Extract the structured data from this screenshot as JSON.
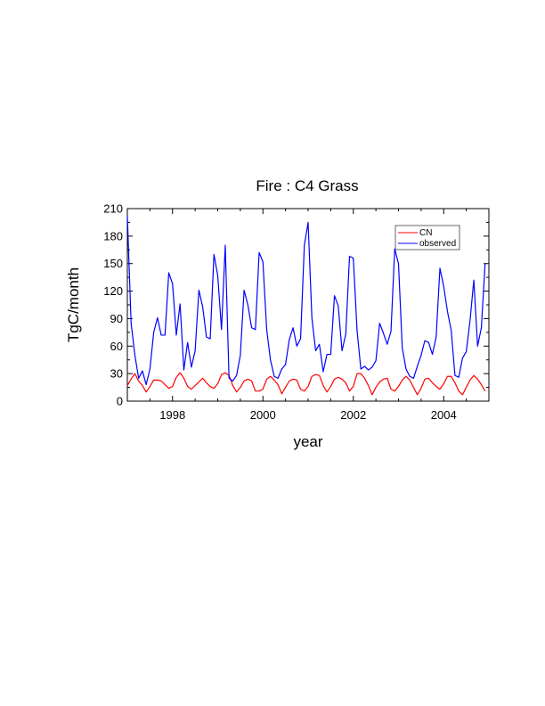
{
  "chart_data": {
    "type": "line",
    "title": "Fire : C4 Grass",
    "xlabel": "year",
    "ylabel": "TgC/month",
    "xlim": [
      1997.0,
      2005.0
    ],
    "ylim": [
      0,
      210
    ],
    "xticks": [
      1998,
      2000,
      2002,
      2004
    ],
    "xtick_labels": [
      "1998",
      "2000",
      "2002",
      "2004"
    ],
    "yticks": [
      0,
      30,
      60,
      90,
      120,
      150,
      180,
      210
    ],
    "ytick_labels": [
      "0",
      "30",
      "60",
      "90",
      "120",
      "150",
      "180",
      "210"
    ],
    "legend_position": "top-right",
    "series": [
      {
        "name": "CN",
        "color": "#ff0000",
        "x_start": 1997.0,
        "x_step": 0.08333,
        "values": [
          17,
          24,
          30,
          22,
          17,
          10,
          16,
          23,
          23,
          22,
          18,
          14,
          16,
          26,
          31,
          25,
          16,
          13,
          17,
          21,
          25,
          20,
          16,
          14,
          19,
          29,
          31,
          28,
          17,
          10,
          15,
          22,
          24,
          22,
          11,
          11,
          13,
          24,
          27,
          23,
          18,
          8,
          15,
          22,
          24,
          23,
          13,
          11,
          16,
          27,
          29,
          28,
          17,
          10,
          16,
          24,
          26,
          24,
          20,
          11,
          16,
          30,
          30,
          25,
          17,
          7,
          15,
          21,
          24,
          25,
          13,
          11,
          16,
          23,
          27,
          23,
          15,
          7,
          14,
          24,
          25,
          20,
          16,
          13,
          19,
          27,
          27,
          20,
          11,
          7,
          15,
          23,
          28,
          24,
          18,
          11
        ]
      },
      {
        "name": "observed",
        "color": "#0000ff",
        "x_start": 1997.0,
        "x_step": 0.08333,
        "values": [
          202,
          85,
          50,
          25,
          33,
          18,
          35,
          75,
          91,
          72,
          72,
          140,
          128,
          72,
          106,
          34,
          64,
          37,
          55,
          121,
          103,
          70,
          68,
          160,
          137,
          78,
          170,
          25,
          22,
          28,
          50,
          121,
          105,
          80,
          78,
          162,
          152,
          78,
          45,
          27,
          25,
          35,
          40,
          67,
          80,
          60,
          68,
          170,
          195,
          91,
          55,
          62,
          32,
          51,
          51,
          115,
          104,
          55,
          73,
          158,
          156,
          77,
          35,
          38,
          34,
          37,
          44,
          85,
          74,
          62,
          76,
          166,
          150,
          58,
          35,
          27,
          25,
          38,
          50,
          66,
          64,
          51,
          70,
          145,
          125,
          98,
          77,
          28,
          26,
          47,
          54,
          88,
          132,
          60,
          80,
          150
        ]
      }
    ]
  }
}
